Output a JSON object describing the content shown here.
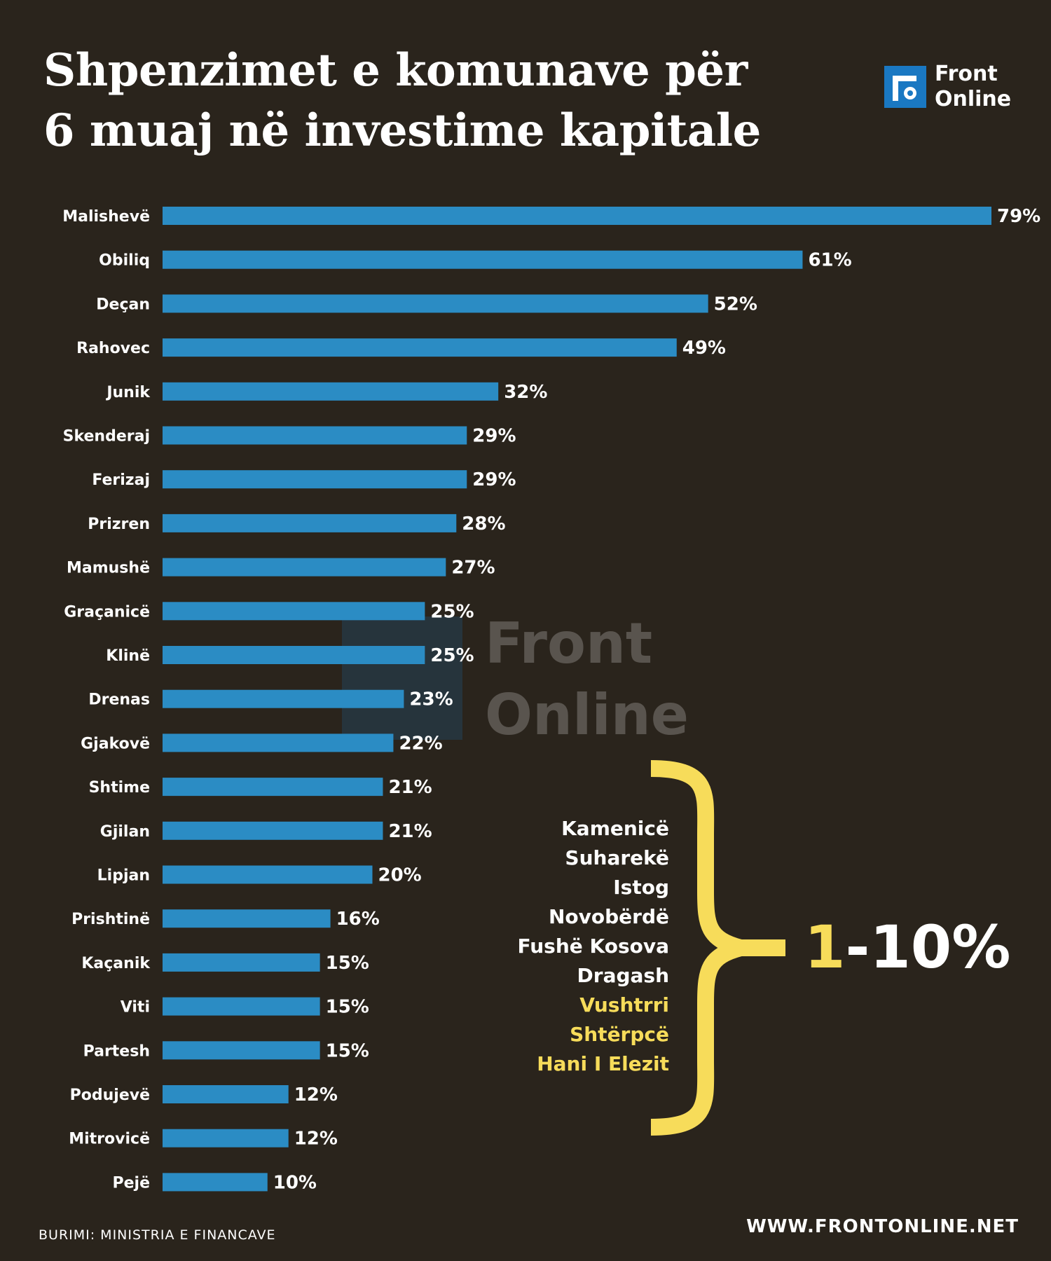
{
  "title_lines": [
    "Shpenzimet e komunave për",
    "6 muaj në investime kapitale"
  ],
  "logo": {
    "line1": "Front",
    "line2": "Online",
    "color": "#1a78c2"
  },
  "watermark": {
    "line1": "Front",
    "line2": "Online"
  },
  "chart_data": {
    "type": "bar",
    "orientation": "horizontal",
    "categories": [
      "Malishevë",
      "Obiliq",
      "Deçan",
      "Rahovec",
      "Junik",
      "Skenderaj",
      "Ferizaj",
      "Prizren",
      "Mamushë",
      "Graçanicë",
      "Klinë",
      "Drenas",
      "Gjakovë",
      "Shtime",
      "Gjilan",
      "Lipjan",
      "Prishtinë",
      "Kaçanik",
      "Viti",
      "Partesh",
      "Podujevë",
      "Mitrovicë",
      "Pejë"
    ],
    "values": [
      79,
      61,
      52,
      49,
      32,
      29,
      29,
      28,
      27,
      25,
      25,
      23,
      22,
      21,
      21,
      20,
      16,
      15,
      15,
      15,
      12,
      12,
      10
    ],
    "labels": [
      "79%",
      "61%",
      "52%",
      "49%",
      "32%",
      "29%",
      "29%",
      "28%",
      "27%",
      "25%",
      "25%",
      "23%",
      "22%",
      "21%",
      "21%",
      "20%",
      "16%",
      "15%",
      "15%",
      "15%",
      "12%",
      "12%",
      "10%"
    ],
    "xlim": [
      0,
      79
    ],
    "bar_color": "#2b8cc4",
    "grid": false
  },
  "group": {
    "items": [
      {
        "name": "Kamenicë",
        "highlight": false
      },
      {
        "name": "Suharekë",
        "highlight": false
      },
      {
        "name": "Istog",
        "highlight": false
      },
      {
        "name": "Novobërdë",
        "highlight": false
      },
      {
        "name": "Fushë Kosova",
        "highlight": false
      },
      {
        "name": "Dragash",
        "highlight": false
      },
      {
        "name": "Vushtrri",
        "highlight": true
      },
      {
        "name": "Shtërpcë",
        "highlight": true
      },
      {
        "name": "Hani I Elezit",
        "highlight": true
      }
    ],
    "range_low": "1",
    "range_rest": "-10%",
    "brace_color": "#f7dc5a",
    "highlight_color": "#f7dc5a"
  },
  "source": "BURIMI: MINISTRIA E FINANCAVE",
  "website": "WWW.FRONTONLINE.NET"
}
